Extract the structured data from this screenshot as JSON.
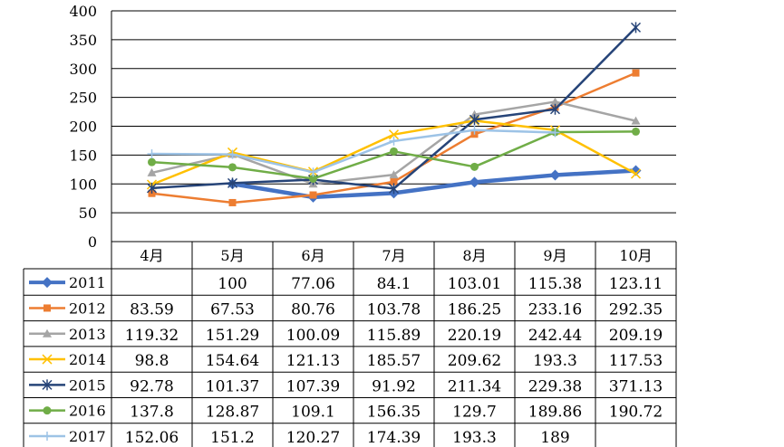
{
  "chart_data": {
    "type": "line",
    "categories": [
      "4月",
      "5月",
      "6月",
      "7月",
      "8月",
      "9月",
      "10月"
    ],
    "ylim": [
      0,
      400
    ],
    "yticks": [
      0,
      50,
      100,
      150,
      200,
      250,
      300,
      350,
      400
    ],
    "grid": true,
    "legend": "data-table",
    "series": [
      {
        "name": "2011",
        "color": "#4472C4",
        "marker": "diamond",
        "values": [
          null,
          100,
          77.06,
          84.1,
          103.01,
          115.38,
          123.11
        ],
        "labels": [
          "",
          "100",
          "77.06",
          "84.1",
          "103.01",
          "115.38",
          "123.11"
        ]
      },
      {
        "name": "2012",
        "color": "#ED7D31",
        "marker": "square",
        "values": [
          83.59,
          67.53,
          80.76,
          103.78,
          186.25,
          233.16,
          292.35
        ],
        "labels": [
          "83.59",
          "67.53",
          "80.76",
          "103.78",
          "186.25",
          "233.16",
          "292.35"
        ]
      },
      {
        "name": "2013",
        "color": "#A5A5A5",
        "marker": "triangle",
        "values": [
          119.32,
          151.29,
          100.09,
          115.89,
          220.19,
          242.44,
          209.19
        ],
        "labels": [
          "119.32",
          "151.29",
          "100.09",
          "115.89",
          "220.19",
          "242.44",
          "209.19"
        ]
      },
      {
        "name": "2014",
        "color": "#FFC000",
        "marker": "x",
        "values": [
          98.8,
          154.64,
          121.13,
          185.57,
          209.62,
          193.3,
          117.53
        ],
        "labels": [
          "98.8",
          "154.64",
          "121.13",
          "185.57",
          "209.62",
          "193.3",
          "117.53"
        ]
      },
      {
        "name": "2015",
        "color": "#264478",
        "marker": "star",
        "values": [
          92.78,
          101.37,
          107.39,
          91.92,
          211.34,
          229.38,
          371.13
        ],
        "labels": [
          "92.78",
          "101.37",
          "107.39",
          "91.92",
          "211.34",
          "229.38",
          "371.13"
        ]
      },
      {
        "name": "2016",
        "color": "#70AD47",
        "marker": "circle",
        "values": [
          137.8,
          128.87,
          109.1,
          156.35,
          129.7,
          189.86,
          190.72
        ],
        "labels": [
          "137.8",
          "128.87",
          "109.1",
          "156.35",
          "129.7",
          "189.86",
          "190.72"
        ]
      },
      {
        "name": "2017",
        "color": "#9DC3E6",
        "marker": "plus",
        "values": [
          152.06,
          151.2,
          120.27,
          174.39,
          193.3,
          189,
          null
        ],
        "labels": [
          "152.06",
          "151.2",
          "120.27",
          "174.39",
          "193.3",
          "189",
          ""
        ]
      }
    ]
  }
}
